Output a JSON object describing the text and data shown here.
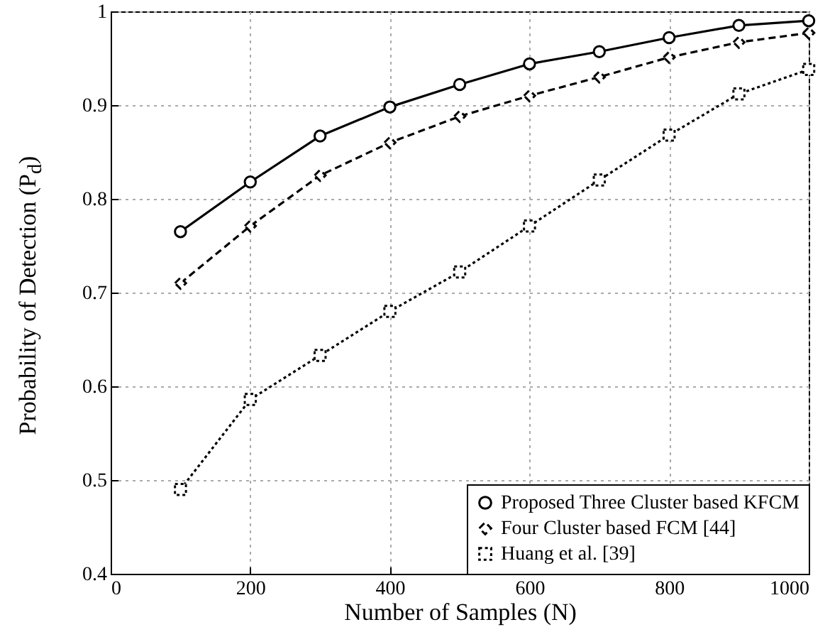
{
  "chart_data": {
    "type": "line",
    "xlabel": "Number of Samples (N)",
    "ylabel": "Probability of Detection (P$_{d}$)",
    "x": [
      100,
      200,
      300,
      400,
      500,
      600,
      700,
      800,
      900,
      1000
    ],
    "series": [
      {
        "name": "Proposed Three Cluster based KFCM",
        "color": "#000000",
        "marker": "circle",
        "line_style": "solid",
        "values": [
          0.765,
          0.818,
          0.867,
          0.898,
          0.922,
          0.944,
          0.957,
          0.972,
          0.985,
          0.99
        ]
      },
      {
        "name": "Four Cluster based FCM [44]",
        "color": "#000000",
        "marker": "diamond",
        "line_style": "dashed",
        "values": [
          0.71,
          0.771,
          0.825,
          0.86,
          0.888,
          0.91,
          0.93,
          0.951,
          0.967,
          0.977
        ]
      },
      {
        "name": "Huang et al. [39]",
        "color": "#000000",
        "marker": "square",
        "line_style": "dotted",
        "values": [
          0.49,
          0.586,
          0.633,
          0.68,
          0.722,
          0.771,
          0.82,
          0.868,
          0.912,
          0.938
        ]
      }
    ],
    "xlim": [
      0,
      1000
    ],
    "xticks": [
      0,
      200,
      400,
      600,
      800,
      1000
    ],
    "ylim": [
      0.4,
      1
    ],
    "yticks": [
      0.4,
      0.5,
      0.6,
      0.7,
      0.8,
      0.9,
      1
    ],
    "grid": true,
    "legend": "bottom right"
  }
}
